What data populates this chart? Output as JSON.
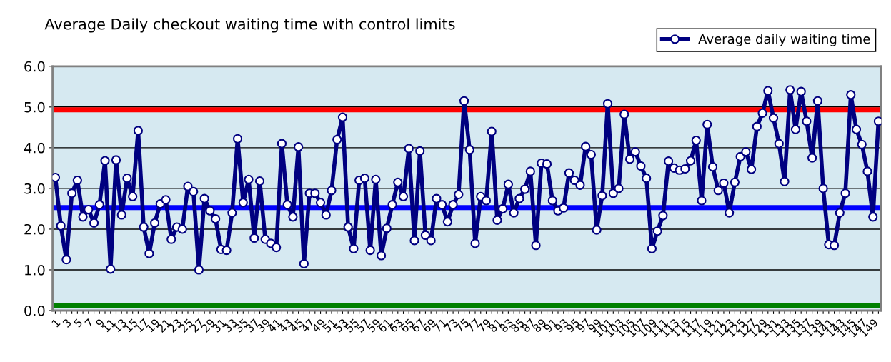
{
  "chart_data": {
    "type": "line",
    "title": "Average Daily checkout waiting time with control limits",
    "categories": [
      "1",
      null,
      "3",
      null,
      "5",
      null,
      "7",
      null,
      "9",
      null,
      "11",
      null,
      "13",
      null,
      "15",
      null,
      "17",
      null,
      "19",
      null,
      "21",
      null,
      "23",
      null,
      "25",
      null,
      "27",
      null,
      "29",
      null,
      "31",
      null,
      "33",
      null,
      "35",
      null,
      "37",
      null,
      "39",
      null,
      "41",
      null,
      "43",
      null,
      "45",
      null,
      "47",
      null,
      "49",
      null,
      "51",
      null,
      "53",
      null,
      "55",
      null,
      "57",
      null,
      "59",
      null,
      "61",
      null,
      "63",
      null,
      "65",
      null,
      "67",
      null,
      "69",
      null,
      "71",
      null,
      "73",
      null,
      "75",
      null,
      "77",
      null,
      "79",
      null,
      "81",
      null,
      "83",
      null,
      "85",
      null,
      "87",
      null,
      "89",
      null,
      "91",
      null,
      "93",
      null,
      "95",
      null,
      "97",
      null,
      "99",
      null,
      "101",
      null,
      "103",
      null,
      "105",
      null,
      "107",
      null,
      "109",
      null,
      "111",
      null,
      "113",
      null,
      "115",
      null,
      "117",
      null,
      "119",
      null,
      "121",
      null,
      "123",
      null,
      "125",
      null,
      "127",
      null,
      "129",
      null,
      "131",
      null,
      "133",
      null,
      "135",
      null,
      "137",
      null,
      "139",
      null,
      "141",
      null,
      "143",
      null,
      "145",
      null,
      "147",
      null,
      "149",
      null
    ],
    "series": [
      {
        "name": "Average daily waiting time",
        "color": "#000080",
        "values": [
          3.27,
          2.08,
          1.25,
          2.88,
          3.2,
          2.3,
          2.48,
          2.15,
          2.6,
          3.68,
          1.02,
          3.7,
          2.35,
          3.25,
          2.8,
          4.42,
          2.05,
          1.4,
          2.15,
          2.62,
          2.72,
          1.75,
          2.05,
          2.0,
          3.05,
          2.92,
          1.0,
          2.75,
          2.45,
          2.25,
          1.5,
          1.48,
          2.4,
          4.22,
          2.65,
          3.22,
          1.78,
          3.18,
          1.75,
          1.65,
          1.55,
          4.1,
          2.6,
          2.3,
          4.02,
          1.15,
          2.88,
          2.88,
          2.65,
          2.35,
          2.95,
          4.2,
          4.75,
          2.05,
          1.52,
          3.2,
          3.25,
          1.48,
          3.22,
          1.35,
          2.02,
          2.6,
          3.15,
          2.8,
          3.98,
          1.72,
          3.92,
          1.85,
          1.72,
          2.75,
          2.6,
          2.18,
          2.6,
          2.85,
          5.15,
          3.95,
          1.65,
          2.8,
          2.7,
          4.4,
          2.22,
          2.5,
          3.1,
          2.4,
          2.75,
          2.98,
          3.42,
          1.6,
          3.62,
          3.6,
          2.7,
          2.45,
          2.52,
          3.38,
          3.2,
          3.08,
          4.03,
          3.83,
          1.98,
          2.82,
          5.08,
          2.88,
          3.0,
          4.82,
          3.72,
          3.9,
          3.55,
          3.25,
          1.52,
          1.95,
          2.33,
          3.67,
          3.5,
          3.45,
          3.48,
          3.68,
          4.18,
          2.7,
          4.57,
          3.53,
          2.95,
          3.13,
          2.4,
          3.15,
          3.78,
          3.9,
          3.47,
          4.52,
          4.85,
          5.4,
          4.73,
          4.1,
          3.17,
          5.42,
          4.45,
          5.38,
          4.65,
          3.75,
          5.15,
          3.0,
          1.62,
          1.6,
          2.4,
          2.88,
          5.3,
          4.45,
          4.08,
          3.42,
          2.3,
          4.65
        ]
      }
    ],
    "ref_lines": [
      {
        "axis": "y",
        "value": 4.93,
        "color": "#ff0000"
      },
      {
        "axis": "y",
        "value": 2.53,
        "color": "#0000ff"
      },
      {
        "axis": "y",
        "value": 0.12,
        "color": "#008000"
      }
    ],
    "ylim": [
      0,
      6
    ],
    "yticks": [
      {
        "value": 0,
        "label": "0.0"
      },
      {
        "value": 1,
        "label": "1.0"
      },
      {
        "value": 2,
        "label": "2.0"
      },
      {
        "value": 3,
        "label": "3.0"
      },
      {
        "value": 4,
        "label": "4.0"
      },
      {
        "value": 5,
        "label": "5.0"
      },
      {
        "value": 6,
        "label": "6.0"
      }
    ],
    "grid": "y",
    "legend": "top right",
    "marker": "circle",
    "line_style": "solid"
  }
}
